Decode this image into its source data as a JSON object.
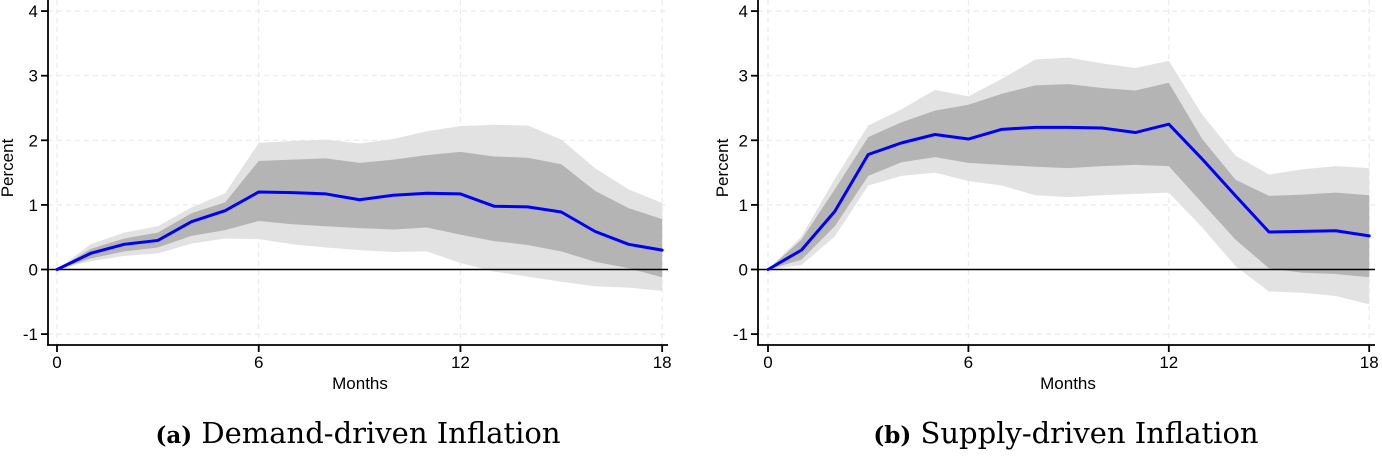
{
  "chart_data": [
    {
      "type": "line",
      "name": "demand",
      "title": "(a) Demand-driven Inflation",
      "caption_label": "(a)",
      "caption_text": " Demand-driven Inflation",
      "xlabel": "Months",
      "ylabel": "Percent",
      "xlim": [
        0,
        18
      ],
      "ylim": [
        -1.17,
        4.17
      ],
      "xticks": [
        0,
        6,
        12,
        18
      ],
      "yticks": [
        -1,
        0,
        1,
        2,
        3,
        4
      ],
      "grid": true,
      "zero_line": true,
      "legend": "none",
      "x": [
        0,
        1,
        2,
        3,
        4,
        5,
        6,
        7,
        8,
        9,
        10,
        11,
        12,
        13,
        14,
        15,
        16,
        17,
        18
      ],
      "series": [
        {
          "name": "impulse-response",
          "color": "#0000f8",
          "values": [
            0,
            0.25,
            0.39,
            0.45,
            0.74,
            0.91,
            1.2,
            1.19,
            1.17,
            1.08,
            1.15,
            1.18,
            1.17,
            0.98,
            0.97,
            0.89,
            0.59,
            0.39,
            0.3
          ]
        }
      ],
      "bands": [
        {
          "name": "outer-confidence-band",
          "color": "#e2e2e2",
          "upper": [
            0,
            0.39,
            0.57,
            0.67,
            0.96,
            1.18,
            1.96,
            1.99,
            2.01,
            1.95,
            2.02,
            2.14,
            2.22,
            2.24,
            2.23,
            2.01,
            1.57,
            1.24,
            1.03
          ],
          "lower": [
            0,
            0.13,
            0.21,
            0.25,
            0.4,
            0.48,
            0.47,
            0.39,
            0.34,
            0.3,
            0.27,
            0.28,
            0.1,
            -0.03,
            -0.11,
            -0.19,
            -0.26,
            -0.28,
            -0.33
          ]
        },
        {
          "name": "inner-confidence-band",
          "color": "#b4b4b4",
          "upper": [
            0,
            0.32,
            0.48,
            0.57,
            0.87,
            1.04,
            1.68,
            1.7,
            1.72,
            1.65,
            1.7,
            1.77,
            1.82,
            1.75,
            1.73,
            1.63,
            1.22,
            0.95,
            0.78
          ],
          "lower": [
            0,
            0.17,
            0.28,
            0.34,
            0.52,
            0.61,
            0.75,
            0.7,
            0.67,
            0.64,
            0.62,
            0.65,
            0.54,
            0.44,
            0.38,
            0.28,
            0.12,
            0.02,
            -0.12
          ]
        }
      ],
      "colors": {
        "grid": "#eaeaea",
        "axis": "#000000",
        "zero_line": "#000000"
      }
    },
    {
      "type": "line",
      "name": "supply",
      "title": "(b) Supply-driven Inflation",
      "caption_label": "(b)",
      "caption_text": " Supply-driven Inflation",
      "xlabel": "Months",
      "ylabel": "Percent",
      "xlim": [
        0,
        18
      ],
      "ylim": [
        -1.17,
        4.17
      ],
      "xticks": [
        0,
        6,
        12,
        18
      ],
      "yticks": [
        -1,
        0,
        1,
        2,
        3,
        4
      ],
      "grid": true,
      "zero_line": true,
      "legend": "none",
      "x": [
        0,
        1,
        2,
        3,
        4,
        5,
        6,
        7,
        8,
        9,
        10,
        11,
        12,
        13,
        14,
        15,
        16,
        17,
        18
      ],
      "series": [
        {
          "name": "impulse-response",
          "color": "#0000f8",
          "values": [
            0,
            0.3,
            0.9,
            1.78,
            1.96,
            2.09,
            2.02,
            2.17,
            2.2,
            2.2,
            2.19,
            2.12,
            2.25,
            1.71,
            1.14,
            0.58,
            0.59,
            0.6,
            0.52
          ]
        }
      ],
      "bands": [
        {
          "name": "outer-confidence-band",
          "color": "#e2e2e2",
          "upper": [
            0,
            0.51,
            1.4,
            2.23,
            2.48,
            2.78,
            2.68,
            2.95,
            3.25,
            3.28,
            3.19,
            3.12,
            3.23,
            2.4,
            1.76,
            1.47,
            1.55,
            1.6,
            1.57
          ],
          "lower": [
            0,
            0.07,
            0.51,
            1.3,
            1.45,
            1.5,
            1.37,
            1.3,
            1.15,
            1.12,
            1.15,
            1.17,
            1.19,
            0.65,
            0.05,
            -0.34,
            -0.36,
            -0.41,
            -0.54
          ]
        },
        {
          "name": "inner-confidence-band",
          "color": "#b4b4b4",
          "upper": [
            0,
            0.46,
            1.24,
            2.05,
            2.28,
            2.46,
            2.55,
            2.72,
            2.85,
            2.87,
            2.81,
            2.77,
            2.89,
            2.02,
            1.39,
            1.14,
            1.16,
            1.19,
            1.15
          ],
          "lower": [
            0,
            0.15,
            0.67,
            1.45,
            1.66,
            1.74,
            1.65,
            1.62,
            1.59,
            1.57,
            1.6,
            1.62,
            1.6,
            1.03,
            0.46,
            0.02,
            -0.05,
            -0.07,
            -0.12
          ]
        }
      ],
      "colors": {
        "grid": "#eaeaea",
        "axis": "#000000",
        "zero_line": "#000000"
      }
    }
  ]
}
